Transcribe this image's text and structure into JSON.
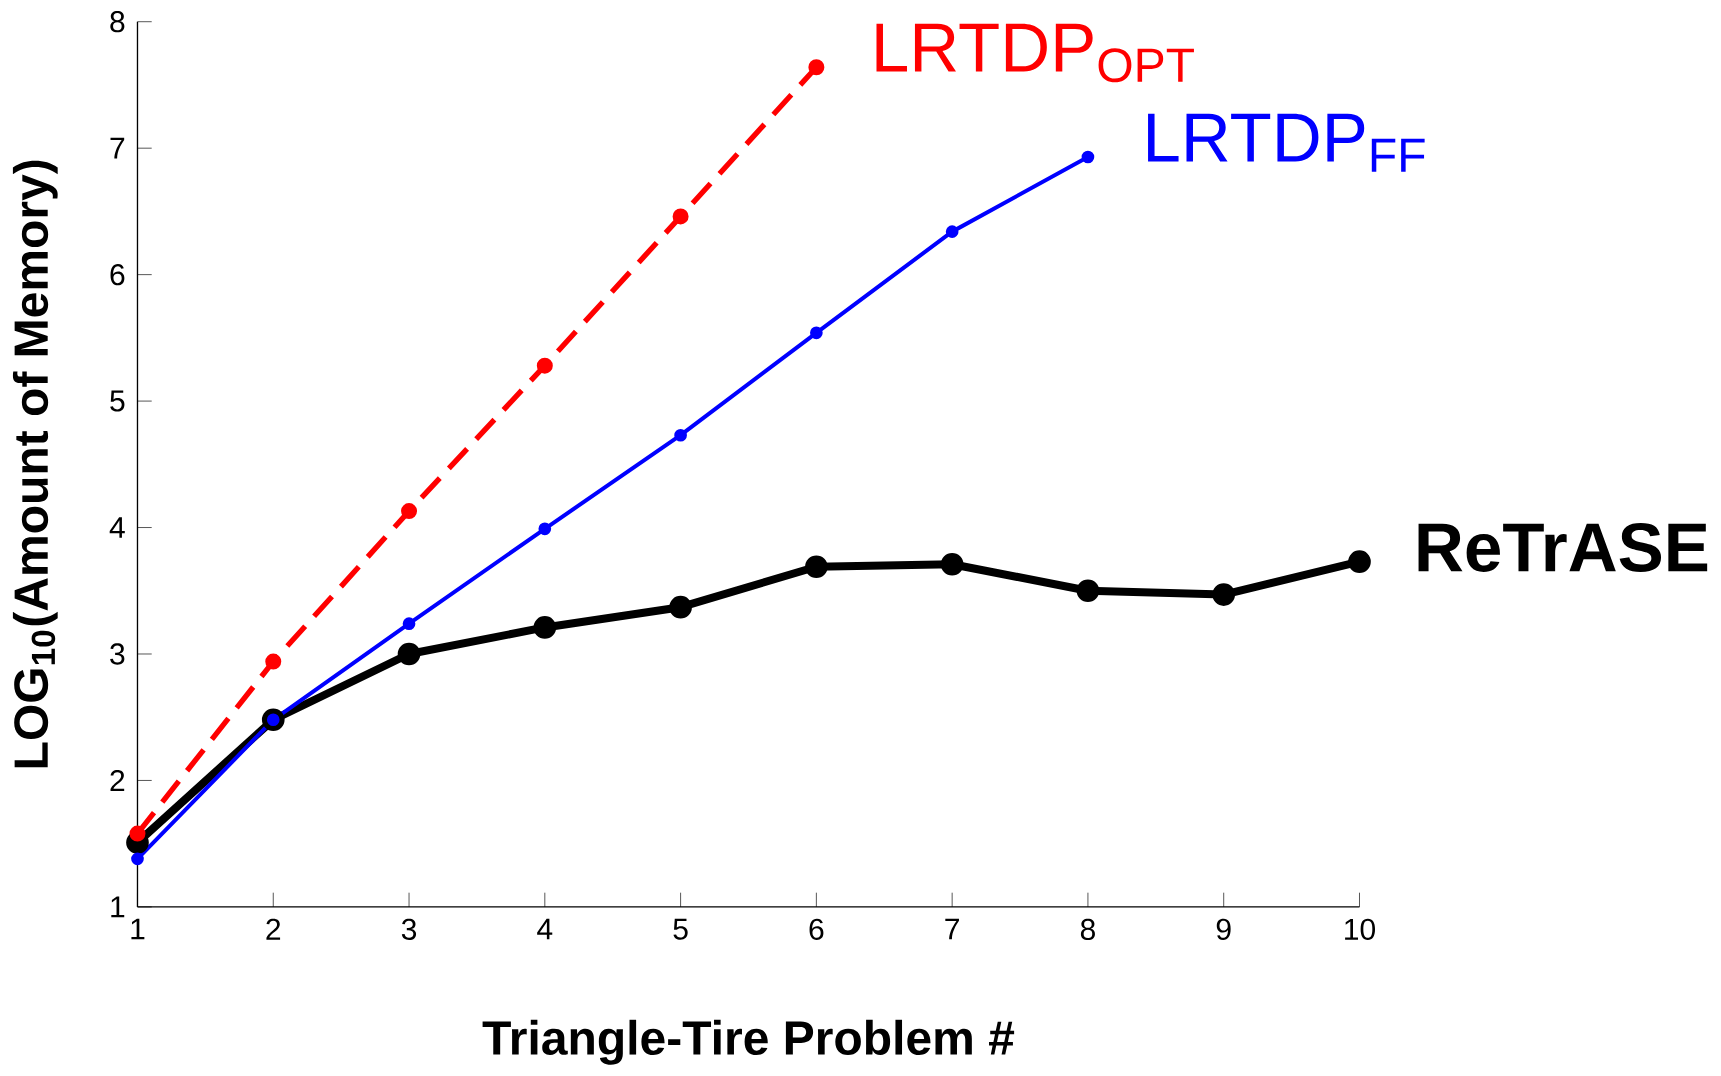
{
  "chart_data": {
    "type": "line",
    "xlabel": "Triangle-Tire Problem #",
    "ylabel": "LOG$_{10}$(Amount of Memory)",
    "x": [
      1,
      2,
      3,
      4,
      5,
      6,
      7,
      8,
      9,
      10
    ],
    "xlim": [
      1,
      10
    ],
    "xticks": [
      1,
      2,
      3,
      4,
      5,
      6,
      7,
      8,
      9,
      10
    ],
    "ylim": [
      1,
      8
    ],
    "yticks": [
      1,
      2,
      3,
      4,
      5,
      6,
      7,
      8
    ],
    "grid": false,
    "legend": false,
    "marker": "circle",
    "series": [
      {
        "name": "LRTDP$_{OPT}$",
        "color": "#ff0000",
        "line_style": "dashed",
        "values": [
          1.58,
          2.94,
          4.13,
          5.28,
          6.46,
          7.64,
          null,
          null,
          null,
          null
        ]
      },
      {
        "name": "LRTDP$_{FF}$",
        "color": "#0000ff",
        "line_style": "solid",
        "values": [
          1.38,
          2.48,
          3.24,
          3.99,
          4.73,
          5.54,
          6.34,
          6.93,
          null,
          null
        ]
      },
      {
        "name": "**ReTrASE**",
        "color": "#000000",
        "line_style": "solid",
        "values": [
          1.51,
          2.48,
          3.0,
          3.21,
          3.37,
          3.69,
          3.71,
          3.5,
          3.47,
          3.73
        ]
      }
    ]
  }
}
